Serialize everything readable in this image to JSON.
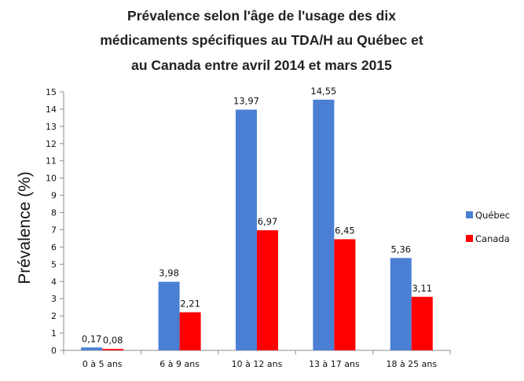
{
  "chart_data": {
    "type": "bar",
    "title": [
      "Prévalence selon l'âge de l'usage des dix",
      "médicaments spécifiques au TDA/H au Québec et",
      "au Canada   entre avril 2014 et mars 2015"
    ],
    "xlabel": "",
    "ylabel": "Prévalence (%)",
    "ylim": [
      0,
      15
    ],
    "yticks": [
      "0",
      "1",
      "2",
      "3",
      "4",
      "5",
      "6",
      "7",
      "8",
      "9",
      "10",
      "11",
      "12",
      "13",
      "14",
      "15"
    ],
    "categories": [
      "0 à 5 ans",
      "6 à 9 ans",
      "10 à 12 ans",
      "13 à 17 ans",
      "18 à 25 ans"
    ],
    "series": [
      {
        "name": "Québec",
        "color": "#4a7fd4",
        "values": [
          0.17,
          3.98,
          13.97,
          14.55,
          5.36
        ],
        "labels": [
          "0,17",
          "3,98",
          "13,97",
          "14,55",
          "5,36"
        ]
      },
      {
        "name": "Canada",
        "color": "#ff0000",
        "values": [
          0.08,
          2.21,
          6.97,
          6.45,
          3.11
        ],
        "labels": [
          "0,08",
          "2,21",
          "6,97",
          "6,45",
          "3,11"
        ]
      }
    ],
    "grid": false,
    "legend": "right"
  }
}
